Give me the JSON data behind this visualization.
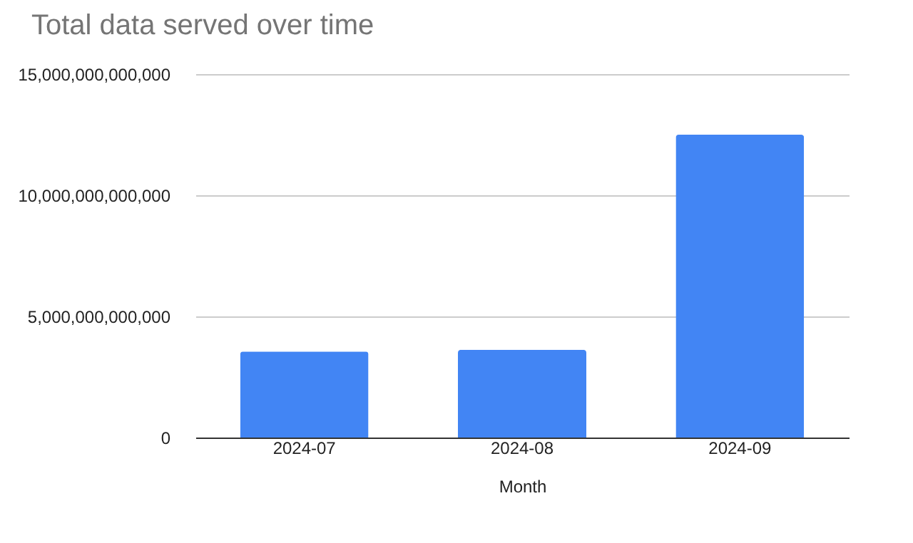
{
  "chart_data": {
    "type": "bar",
    "title": "Total data served over time",
    "xlabel": "Month",
    "categories": [
      "2024-07",
      "2024-08",
      "2024-09"
    ],
    "values": [
      3550000000000,
      3620000000000,
      12500000000000
    ],
    "color": "#4285f4",
    "ylim": [
      0,
      15000000000000
    ],
    "yticks": [
      0,
      {
        "value": 5000000000000,
        "label": "5,000,000,000,000"
      },
      {
        "value": 10000000000000,
        "label": "10,000,000,000,000"
      },
      {
        "value": 15000000000000,
        "label": "15,000,000,000,000"
      }
    ],
    "grid": "y"
  }
}
